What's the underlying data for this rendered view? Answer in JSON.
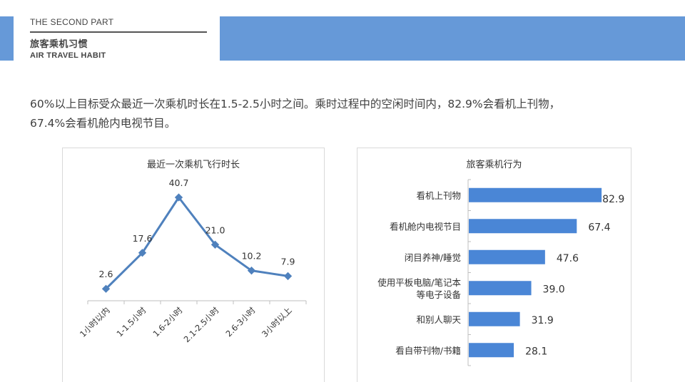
{
  "header": {
    "part_label": "THE SECOND PART",
    "title_cn": "旅客乘机习惯",
    "title_en": "AIR TRAVEL HABIT",
    "accent_color": "#6699d8"
  },
  "summary": {
    "line1": "60%以上目标受众最近一次乘机时长在1.5-2.5小时之间。乘时过程中的空闲时间内，82.9%会看机上刊物，",
    "line2": "67.4%会看机舱内电视节目。"
  },
  "chart_data": [
    {
      "type": "line",
      "title": "最近一次乘机飞行时长",
      "categories": [
        "1小时以内",
        "1-1.5小时",
        "1.6-2小时",
        "2.1-2.5小时",
        "2.6-3小时",
        "3小时以上"
      ],
      "values": [
        2.6,
        17.6,
        40.7,
        21.0,
        10.2,
        7.9
      ],
      "value_labels": [
        "2.6",
        "17.6",
        "40.7",
        "21.0",
        "10.2",
        "7.9"
      ],
      "xlabel": "",
      "ylabel": "",
      "grid": false,
      "legend": "none",
      "color": "#4f81bd"
    },
    {
      "type": "bar",
      "orientation": "horizontal",
      "title": "旅客乘机行为",
      "categories": [
        "看机上刊物",
        "看机舱内电视节目",
        "闭目养神/睡觉",
        "使用平板电脑/笔记本等电子设备",
        "和别人聊天",
        "看自带刊物/书籍"
      ],
      "category_lines": [
        [
          "看机上刊物"
        ],
        [
          "看机舱内电视节目"
        ],
        [
          "闭目养神/睡觉"
        ],
        [
          "使用平板电脑/笔记本",
          "等电子设备"
        ],
        [
          "和别人聊天"
        ],
        [
          "看自带刊物/书籍"
        ]
      ],
      "values": [
        82.9,
        67.4,
        47.6,
        39.0,
        31.9,
        28.1
      ],
      "value_labels": [
        "82.9",
        "67.4",
        "47.6",
        "39.0",
        "31.9",
        "28.1"
      ],
      "xlabel": "",
      "ylabel": "",
      "grid": false,
      "legend": "none",
      "color": "#4a86d6"
    }
  ]
}
